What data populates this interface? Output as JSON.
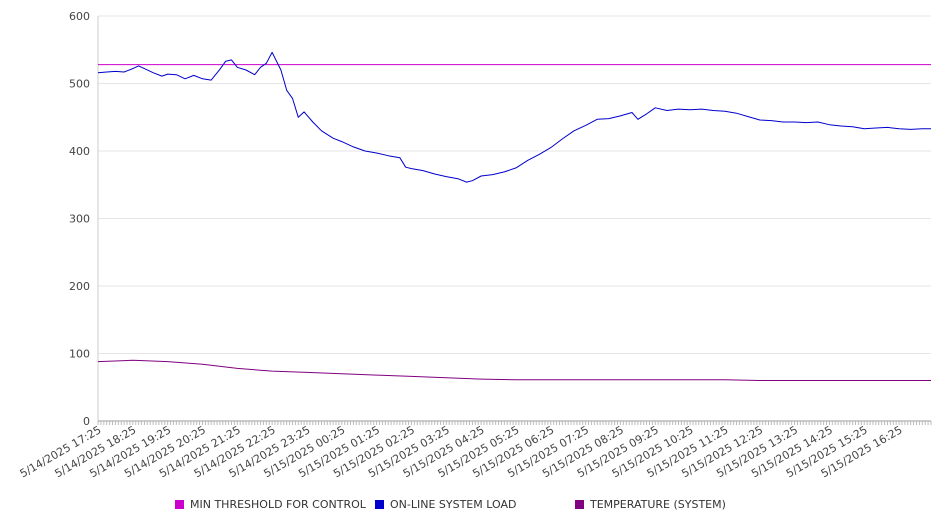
{
  "chart_data": {
    "type": "line",
    "title": "",
    "xlabel": "",
    "ylabel": "",
    "ylim": [
      0,
      600
    ],
    "yticks": [
      0,
      100,
      200,
      300,
      400,
      500,
      600
    ],
    "grid": "horizontal",
    "legend_position": "bottom",
    "x_start": "5/14/2025 17:25",
    "x_end": "5/15/2025 17:20",
    "x_tick_labels": [
      "5/14/2025 17:25",
      "5/14/2025 18:25",
      "5/14/2025 19:25",
      "5/14/2025 20:25",
      "5/14/2025 21:25",
      "5/14/2025 22:25",
      "5/14/2025 23:25",
      "5/15/2025 00:25",
      "5/15/2025 01:25",
      "5/15/2025 02:25",
      "5/15/2025 03:25",
      "5/15/2025 04:25",
      "5/15/2025 05:25",
      "5/15/2025 06:25",
      "5/15/2025 07:25",
      "5/15/2025 08:25",
      "5/15/2025 09:25",
      "5/15/2025 10:25",
      "5/15/2025 11:25",
      "5/15/2025 12:25",
      "5/15/2025 13:25",
      "5/15/2025 14:25",
      "5/15/2025 15:25",
      "5/15/2025 16:25"
    ],
    "series": [
      {
        "name": "MIN THRESHOLD FOR CONTROL",
        "color": "#cc00cc",
        "points": [
          [
            "5/14/2025 17:25",
            528
          ],
          [
            "5/15/2025 17:20",
            528
          ]
        ]
      },
      {
        "name": "ON-LINE SYSTEM LOAD",
        "color": "#0000cc",
        "points": [
          [
            "5/14/2025 17:25",
            516
          ],
          [
            "5/14/2025 17:40",
            517
          ],
          [
            "5/14/2025 17:55",
            518
          ],
          [
            "5/14/2025 18:10",
            517
          ],
          [
            "5/14/2025 18:25",
            522
          ],
          [
            "5/14/2025 18:35",
            526
          ],
          [
            "5/14/2025 18:45",
            522
          ],
          [
            "5/14/2025 19:00",
            516
          ],
          [
            "5/14/2025 19:15",
            511
          ],
          [
            "5/14/2025 19:25",
            514
          ],
          [
            "5/14/2025 19:40",
            513
          ],
          [
            "5/14/2025 19:55",
            507
          ],
          [
            "5/14/2025 20:10",
            512
          ],
          [
            "5/14/2025 20:25",
            507
          ],
          [
            "5/14/2025 20:40",
            505
          ],
          [
            "5/14/2025 20:55",
            521
          ],
          [
            "5/14/2025 21:05",
            533
          ],
          [
            "5/14/2025 21:15",
            535
          ],
          [
            "5/14/2025 21:25",
            524
          ],
          [
            "5/14/2025 21:40",
            520
          ],
          [
            "5/14/2025 21:55",
            513
          ],
          [
            "5/14/2025 22:05",
            524
          ],
          [
            "5/14/2025 22:15",
            530
          ],
          [
            "5/14/2025 22:25",
            546
          ],
          [
            "5/14/2025 22:40",
            520
          ],
          [
            "5/14/2025 22:50",
            490
          ],
          [
            "5/14/2025 23:00",
            478
          ],
          [
            "5/14/2025 23:10",
            450
          ],
          [
            "5/14/2025 23:20",
            458
          ],
          [
            "5/14/2025 23:35",
            443
          ],
          [
            "5/14/2025 23:50",
            430
          ],
          [
            "5/15/2025 00:10",
            419
          ],
          [
            "5/15/2025 00:25",
            414
          ],
          [
            "5/15/2025 00:45",
            406
          ],
          [
            "5/15/2025 01:05",
            400
          ],
          [
            "5/15/2025 01:25",
            397
          ],
          [
            "5/15/2025 01:45",
            393
          ],
          [
            "5/15/2025 02:05",
            390
          ],
          [
            "5/15/2025 02:15",
            376
          ],
          [
            "5/15/2025 02:25",
            374
          ],
          [
            "5/15/2025 02:45",
            371
          ],
          [
            "5/15/2025 03:05",
            366
          ],
          [
            "5/15/2025 03:25",
            362
          ],
          [
            "5/15/2025 03:45",
            359
          ],
          [
            "5/15/2025 04:00",
            354
          ],
          [
            "5/15/2025 04:10",
            356
          ],
          [
            "5/15/2025 04:25",
            363
          ],
          [
            "5/15/2025 04:45",
            365
          ],
          [
            "5/15/2025 05:05",
            369
          ],
          [
            "5/15/2025 05:25",
            375
          ],
          [
            "5/15/2025 05:45",
            386
          ],
          [
            "5/15/2025 06:05",
            395
          ],
          [
            "5/15/2025 06:25",
            405
          ],
          [
            "5/15/2025 06:45",
            418
          ],
          [
            "5/15/2025 07:05",
            430
          ],
          [
            "5/15/2025 07:25",
            438
          ],
          [
            "5/15/2025 07:45",
            447
          ],
          [
            "5/15/2025 08:05",
            448
          ],
          [
            "5/15/2025 08:25",
            452
          ],
          [
            "5/15/2025 08:45",
            457
          ],
          [
            "5/15/2025 08:55",
            447
          ],
          [
            "5/15/2025 09:10",
            455
          ],
          [
            "5/15/2025 09:25",
            464
          ],
          [
            "5/15/2025 09:45",
            460
          ],
          [
            "5/15/2025 10:05",
            462
          ],
          [
            "5/15/2025 10:25",
            461
          ],
          [
            "5/15/2025 10:45",
            462
          ],
          [
            "5/15/2025 11:05",
            460
          ],
          [
            "5/15/2025 11:25",
            459
          ],
          [
            "5/15/2025 11:45",
            456
          ],
          [
            "5/15/2025 12:05",
            451
          ],
          [
            "5/15/2025 12:25",
            446
          ],
          [
            "5/15/2025 12:45",
            445
          ],
          [
            "5/15/2025 13:05",
            443
          ],
          [
            "5/15/2025 13:25",
            443
          ],
          [
            "5/15/2025 13:45",
            442
          ],
          [
            "5/15/2025 14:05",
            443
          ],
          [
            "5/15/2025 14:25",
            439
          ],
          [
            "5/15/2025 14:45",
            437
          ],
          [
            "5/15/2025 15:05",
            436
          ],
          [
            "5/15/2025 15:25",
            433
          ],
          [
            "5/15/2025 15:45",
            434
          ],
          [
            "5/15/2025 16:05",
            435
          ],
          [
            "5/15/2025 16:25",
            433
          ],
          [
            "5/15/2025 16:45",
            432
          ],
          [
            "5/15/2025 17:05",
            433
          ],
          [
            "5/15/2025 17:20",
            433
          ]
        ]
      },
      {
        "name": "TEMPERATURE (SYSTEM)",
        "color": "#800080",
        "points": [
          [
            "5/14/2025 17:25",
            88
          ],
          [
            "5/14/2025 18:00",
            89
          ],
          [
            "5/14/2025 18:25",
            90
          ],
          [
            "5/14/2025 19:25",
            88
          ],
          [
            "5/14/2025 20:25",
            84
          ],
          [
            "5/14/2025 21:25",
            78
          ],
          [
            "5/14/2025 22:25",
            74
          ],
          [
            "5/14/2025 23:25",
            72
          ],
          [
            "5/15/2025 00:25",
            70
          ],
          [
            "5/15/2025 01:25",
            68
          ],
          [
            "5/15/2025 02:25",
            66
          ],
          [
            "5/15/2025 03:25",
            64
          ],
          [
            "5/15/2025 04:25",
            62
          ],
          [
            "5/15/2025 05:25",
            61
          ],
          [
            "5/15/2025 06:25",
            61
          ],
          [
            "5/15/2025 07:25",
            61
          ],
          [
            "5/15/2025 08:25",
            61
          ],
          [
            "5/15/2025 09:25",
            61
          ],
          [
            "5/15/2025 10:25",
            61
          ],
          [
            "5/15/2025 11:25",
            61
          ],
          [
            "5/15/2025 12:25",
            60
          ],
          [
            "5/15/2025 13:25",
            60
          ],
          [
            "5/15/2025 14:25",
            60
          ],
          [
            "5/15/2025 15:25",
            60
          ],
          [
            "5/15/2025 16:25",
            60
          ],
          [
            "5/15/2025 17:20",
            60
          ]
        ]
      }
    ]
  }
}
